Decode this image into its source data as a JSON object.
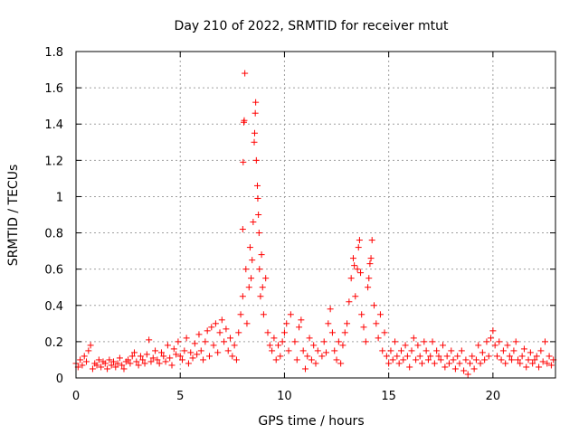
{
  "chart_data": {
    "type": "scatter",
    "title": "Day 210 of 2022, SRMTID for receiver mtut",
    "xlabel": "GPS time / hours",
    "ylabel": "SRMTID / TECUs",
    "xlim": [
      0,
      23
    ],
    "ylim": [
      0,
      1.8
    ],
    "x_ticks": [
      0,
      5,
      10,
      15,
      20
    ],
    "y_ticks": [
      0,
      0.2,
      0.4,
      0.6,
      0.8,
      1,
      1.2,
      1.4,
      1.6,
      1.8
    ],
    "x_tick_labels": [
      "0",
      "5",
      "10",
      "15",
      "20"
    ],
    "y_tick_labels": [
      "0",
      "0.2",
      "0.4",
      "0.6",
      "0.8",
      "1",
      "1.2",
      "1.4",
      "1.6",
      "1.8"
    ],
    "grid": true,
    "marker": "+",
    "marker_color": "#ff0000",
    "series": [
      {
        "name": "SRMTID",
        "points": [
          [
            0.0,
            0.08
          ],
          [
            0.1,
            0.06
          ],
          [
            0.2,
            0.1
          ],
          [
            0.3,
            0.07
          ],
          [
            0.4,
            0.12
          ],
          [
            0.5,
            0.09
          ],
          [
            0.6,
            0.15
          ],
          [
            0.7,
            0.18
          ],
          [
            0.8,
            0.05
          ],
          [
            0.9,
            0.08
          ],
          [
            1.0,
            0.07
          ],
          [
            1.1,
            0.1
          ],
          [
            1.2,
            0.06
          ],
          [
            1.3,
            0.09
          ],
          [
            1.4,
            0.08
          ],
          [
            1.5,
            0.05
          ],
          [
            1.6,
            0.1
          ],
          [
            1.7,
            0.07
          ],
          [
            1.8,
            0.09
          ],
          [
            1.9,
            0.06
          ],
          [
            2.0,
            0.08
          ],
          [
            2.1,
            0.11
          ],
          [
            2.2,
            0.07
          ],
          [
            2.3,
            0.05
          ],
          [
            2.4,
            0.09
          ],
          [
            2.5,
            0.1
          ],
          [
            2.6,
            0.08
          ],
          [
            2.7,
            0.12
          ],
          [
            2.8,
            0.14
          ],
          [
            2.9,
            0.09
          ],
          [
            3.0,
            0.07
          ],
          [
            3.1,
            0.12
          ],
          [
            3.2,
            0.1
          ],
          [
            3.3,
            0.08
          ],
          [
            3.4,
            0.13
          ],
          [
            3.5,
            0.21
          ],
          [
            3.6,
            0.09
          ],
          [
            3.7,
            0.11
          ],
          [
            3.8,
            0.15
          ],
          [
            3.9,
            0.1
          ],
          [
            4.0,
            0.08
          ],
          [
            4.1,
            0.14
          ],
          [
            4.2,
            0.12
          ],
          [
            4.3,
            0.09
          ],
          [
            4.4,
            0.18
          ],
          [
            4.5,
            0.11
          ],
          [
            4.6,
            0.07
          ],
          [
            4.7,
            0.16
          ],
          [
            4.8,
            0.13
          ],
          [
            4.9,
            0.2
          ],
          [
            5.0,
            0.12
          ],
          [
            5.1,
            0.1
          ],
          [
            5.2,
            0.15
          ],
          [
            5.3,
            0.22
          ],
          [
            5.4,
            0.08
          ],
          [
            5.5,
            0.14
          ],
          [
            5.6,
            0.11
          ],
          [
            5.7,
            0.19
          ],
          [
            5.8,
            0.13
          ],
          [
            5.9,
            0.24
          ],
          [
            6.0,
            0.15
          ],
          [
            6.1,
            0.1
          ],
          [
            6.2,
            0.2
          ],
          [
            6.3,
            0.26
          ],
          [
            6.4,
            0.12
          ],
          [
            6.5,
            0.28
          ],
          [
            6.6,
            0.18
          ],
          [
            6.7,
            0.3
          ],
          [
            6.8,
            0.14
          ],
          [
            6.9,
            0.25
          ],
          [
            7.0,
            0.32
          ],
          [
            7.1,
            0.2
          ],
          [
            7.2,
            0.27
          ],
          [
            7.3,
            0.15
          ],
          [
            7.4,
            0.22
          ],
          [
            7.5,
            0.12
          ],
          [
            7.6,
            0.18
          ],
          [
            7.7,
            0.1
          ],
          [
            7.8,
            0.25
          ],
          [
            7.9,
            0.35
          ],
          [
            8.0,
            0.45
          ],
          [
            8.0,
            0.82
          ],
          [
            8.02,
            1.19
          ],
          [
            8.05,
            1.41
          ],
          [
            8.07,
            1.42
          ],
          [
            8.1,
            1.68
          ],
          [
            8.15,
            0.6
          ],
          [
            8.2,
            0.3
          ],
          [
            8.3,
            0.5
          ],
          [
            8.35,
            0.72
          ],
          [
            8.4,
            0.55
          ],
          [
            8.45,
            0.65
          ],
          [
            8.5,
            0.86
          ],
          [
            8.55,
            1.3
          ],
          [
            8.57,
            1.35
          ],
          [
            8.6,
            1.46
          ],
          [
            8.62,
            1.52
          ],
          [
            8.65,
            1.2
          ],
          [
            8.7,
            1.06
          ],
          [
            8.72,
            0.99
          ],
          [
            8.75,
            0.9
          ],
          [
            8.78,
            0.8
          ],
          [
            8.8,
            0.6
          ],
          [
            8.85,
            0.45
          ],
          [
            8.9,
            0.68
          ],
          [
            8.95,
            0.5
          ],
          [
            9.0,
            0.35
          ],
          [
            9.1,
            0.55
          ],
          [
            9.2,
            0.25
          ],
          [
            9.3,
            0.18
          ],
          [
            9.4,
            0.15
          ],
          [
            9.5,
            0.22
          ],
          [
            9.6,
            0.1
          ],
          [
            9.7,
            0.18
          ],
          [
            9.8,
            0.12
          ],
          [
            9.9,
            0.2
          ],
          [
            10.0,
            0.25
          ],
          [
            10.1,
            0.3
          ],
          [
            10.2,
            0.15
          ],
          [
            10.3,
            0.35
          ],
          [
            10.5,
            0.2
          ],
          [
            10.6,
            0.1
          ],
          [
            10.7,
            0.28
          ],
          [
            10.8,
            0.32
          ],
          [
            10.9,
            0.15
          ],
          [
            11.0,
            0.05
          ],
          [
            11.1,
            0.12
          ],
          [
            11.2,
            0.22
          ],
          [
            11.3,
            0.1
          ],
          [
            11.4,
            0.18
          ],
          [
            11.5,
            0.08
          ],
          [
            11.6,
            0.15
          ],
          [
            11.8,
            0.12
          ],
          [
            11.9,
            0.2
          ],
          [
            12.0,
            0.14
          ],
          [
            12.1,
            0.3
          ],
          [
            12.2,
            0.38
          ],
          [
            12.3,
            0.25
          ],
          [
            12.4,
            0.15
          ],
          [
            12.5,
            0.1
          ],
          [
            12.6,
            0.2
          ],
          [
            12.7,
            0.08
          ],
          [
            12.8,
            0.18
          ],
          [
            12.9,
            0.25
          ],
          [
            13.0,
            0.3
          ],
          [
            13.1,
            0.42
          ],
          [
            13.2,
            0.55
          ],
          [
            13.3,
            0.66
          ],
          [
            13.35,
            0.62
          ],
          [
            13.4,
            0.45
          ],
          [
            13.5,
            0.6
          ],
          [
            13.55,
            0.72
          ],
          [
            13.6,
            0.76
          ],
          [
            13.65,
            0.58
          ],
          [
            13.7,
            0.35
          ],
          [
            13.8,
            0.28
          ],
          [
            13.9,
            0.2
          ],
          [
            14.0,
            0.5
          ],
          [
            14.05,
            0.55
          ],
          [
            14.1,
            0.63
          ],
          [
            14.15,
            0.66
          ],
          [
            14.2,
            0.76
          ],
          [
            14.3,
            0.4
          ],
          [
            14.4,
            0.3
          ],
          [
            14.5,
            0.22
          ],
          [
            14.6,
            0.35
          ],
          [
            14.7,
            0.15
          ],
          [
            14.8,
            0.25
          ],
          [
            14.9,
            0.12
          ],
          [
            15.0,
            0.08
          ],
          [
            15.1,
            0.15
          ],
          [
            15.2,
            0.1
          ],
          [
            15.3,
            0.2
          ],
          [
            15.4,
            0.12
          ],
          [
            15.5,
            0.08
          ],
          [
            15.6,
            0.15
          ],
          [
            15.7,
            0.1
          ],
          [
            15.8,
            0.18
          ],
          [
            15.9,
            0.12
          ],
          [
            16.0,
            0.06
          ],
          [
            16.1,
            0.15
          ],
          [
            16.2,
            0.22
          ],
          [
            16.3,
            0.1
          ],
          [
            16.4,
            0.18
          ],
          [
            16.5,
            0.12
          ],
          [
            16.6,
            0.08
          ],
          [
            16.7,
            0.2
          ],
          [
            16.8,
            0.15
          ],
          [
            16.9,
            0.1
          ],
          [
            17.0,
            0.12
          ],
          [
            17.1,
            0.2
          ],
          [
            17.2,
            0.08
          ],
          [
            17.3,
            0.15
          ],
          [
            17.4,
            0.12
          ],
          [
            17.5,
            0.1
          ],
          [
            17.6,
            0.18
          ],
          [
            17.7,
            0.06
          ],
          [
            17.8,
            0.12
          ],
          [
            17.9,
            0.08
          ],
          [
            18.0,
            0.15
          ],
          [
            18.1,
            0.1
          ],
          [
            18.2,
            0.05
          ],
          [
            18.3,
            0.12
          ],
          [
            18.4,
            0.08
          ],
          [
            18.5,
            0.15
          ],
          [
            18.6,
            0.04
          ],
          [
            18.7,
            0.1
          ],
          [
            18.8,
            0.02
          ],
          [
            18.9,
            0.08
          ],
          [
            19.0,
            0.12
          ],
          [
            19.1,
            0.05
          ],
          [
            19.2,
            0.1
          ],
          [
            19.3,
            0.18
          ],
          [
            19.4,
            0.08
          ],
          [
            19.5,
            0.14
          ],
          [
            19.6,
            0.1
          ],
          [
            19.7,
            0.2
          ],
          [
            19.8,
            0.12
          ],
          [
            19.9,
            0.22
          ],
          [
            20.0,
            0.26
          ],
          [
            20.1,
            0.18
          ],
          [
            20.2,
            0.12
          ],
          [
            20.3,
            0.2
          ],
          [
            20.4,
            0.1
          ],
          [
            20.5,
            0.15
          ],
          [
            20.6,
            0.08
          ],
          [
            20.7,
            0.18
          ],
          [
            20.8,
            0.12
          ],
          [
            20.9,
            0.1
          ],
          [
            21.0,
            0.15
          ],
          [
            21.1,
            0.2
          ],
          [
            21.2,
            0.1
          ],
          [
            21.3,
            0.08
          ],
          [
            21.4,
            0.12
          ],
          [
            21.5,
            0.16
          ],
          [
            21.6,
            0.06
          ],
          [
            21.7,
            0.1
          ],
          [
            21.8,
            0.14
          ],
          [
            21.9,
            0.08
          ],
          [
            22.0,
            0.1
          ],
          [
            22.1,
            0.12
          ],
          [
            22.2,
            0.06
          ],
          [
            22.3,
            0.15
          ],
          [
            22.4,
            0.09
          ],
          [
            22.5,
            0.2
          ],
          [
            22.6,
            0.08
          ],
          [
            22.7,
            0.12
          ],
          [
            22.8,
            0.07
          ],
          [
            22.9,
            0.1
          ]
        ]
      }
    ]
  }
}
